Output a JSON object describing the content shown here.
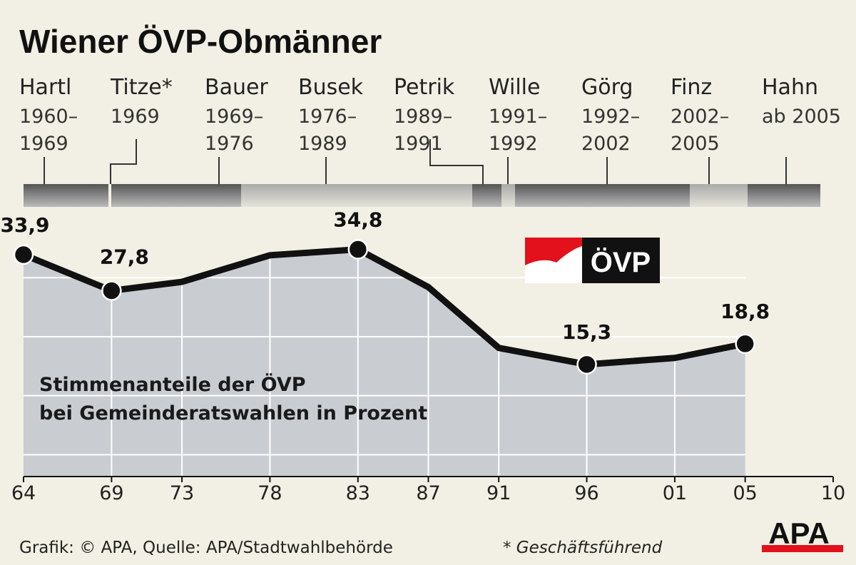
{
  "title": "Wiener ÖVP-Obmänner",
  "leaders": [
    {
      "name": "Hartl",
      "years": [
        "1960–",
        "1969"
      ]
    },
    {
      "name": "Titze*",
      "years": [
        "1969",
        ""
      ]
    },
    {
      "name": "Bauer",
      "years": [
        "1969–",
        "1976"
      ]
    },
    {
      "name": "Busek",
      "years": [
        "1976–",
        "1989"
      ]
    },
    {
      "name": "Petrik",
      "years": [
        "1989–",
        "1991"
      ]
    },
    {
      "name": "Wille",
      "years": [
        "1991–",
        "1992"
      ]
    },
    {
      "name": "Görg",
      "years": [
        "1992–",
        "2002"
      ]
    },
    {
      "name": "Finz",
      "years": [
        "2002–",
        "2005"
      ]
    },
    {
      "name": "Hahn",
      "years": [
        "ab 2005",
        ""
      ]
    }
  ],
  "chart_data": {
    "type": "area",
    "title": "Wiener ÖVP-Obmänner",
    "subtitle": [
      "Stimmenanteile der ÖVP",
      "bei Gemeinderatswahlen in Prozent"
    ],
    "x": [
      1964,
      1969,
      1973,
      1978,
      1983,
      1987,
      1991,
      1996,
      2001,
      2005
    ],
    "values": [
      33.9,
      27.8,
      29.3,
      33.8,
      34.8,
      28.4,
      18.1,
      15.3,
      16.4,
      18.8
    ],
    "data_labels": {
      "1964": "33,9",
      "1969": "27,8",
      "1983": "34,8",
      "1996": "15,3",
      "2005": "18,8"
    },
    "x_tick_labels": [
      "64",
      "69",
      "73",
      "78",
      "83",
      "87",
      "91",
      "96",
      "01",
      "05",
      "10"
    ],
    "xlim": [
      1964,
      2010
    ],
    "ylim": [
      -3.7,
      40
    ],
    "grid": true,
    "colors": {
      "line": "#111111",
      "fill": "#c9cdd1",
      "background": "#f2f0e4"
    }
  },
  "logo_ovp": "ÖVP",
  "logo_apa": "APA",
  "footer": {
    "source": "Grafik: © APA, Quelle: APA/Stadtwahlbehörde",
    "note": "* Geschäftsführend"
  }
}
